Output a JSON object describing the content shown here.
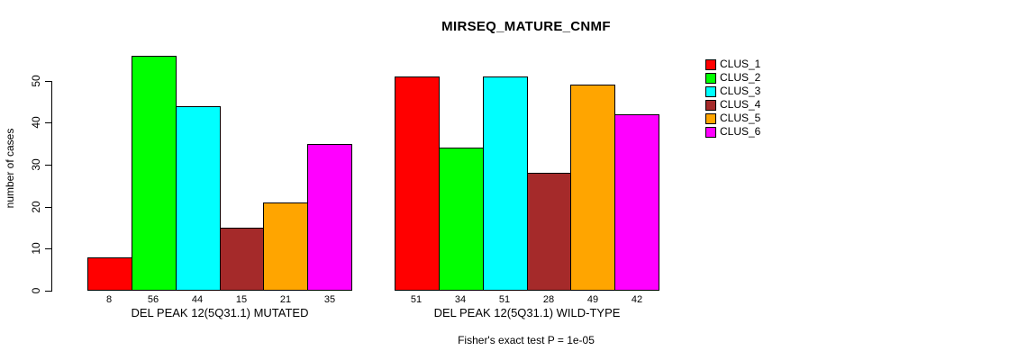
{
  "chart_data": {
    "type": "bar",
    "title": "MIRSEQ_MATURE_CNMF",
    "ylabel": "number of cases",
    "yticks": [
      0,
      10,
      20,
      30,
      40,
      50
    ],
    "ylim": [
      0,
      56
    ],
    "grid": false,
    "legend_position": "right",
    "series": [
      {
        "name": "CLUS_1",
        "color": "#FF0000"
      },
      {
        "name": "CLUS_2",
        "color": "#00FF00"
      },
      {
        "name": "CLUS_3",
        "color": "#00FFFF"
      },
      {
        "name": "CLUS_4",
        "color": "#A52A2A"
      },
      {
        "name": "CLUS_5",
        "color": "#FFA500"
      },
      {
        "name": "CLUS_6",
        "color": "#FF00FF"
      }
    ],
    "groups": [
      {
        "label": "DEL PEAK 12(5Q31.1) MUTATED",
        "values": [
          8,
          56,
          44,
          15,
          21,
          35
        ]
      },
      {
        "label": "DEL PEAK 12(5Q31.1) WILD-TYPE",
        "values": [
          51,
          34,
          51,
          28,
          49,
          42
        ]
      }
    ],
    "annotation": "Fisher's exact test P = 1e-05"
  }
}
